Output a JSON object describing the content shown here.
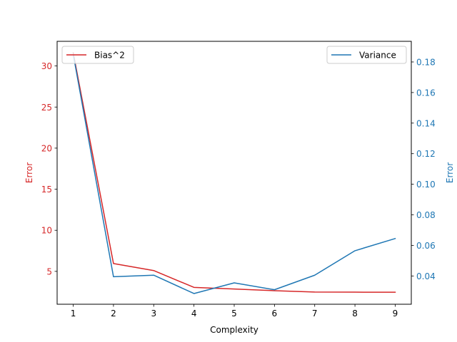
{
  "chart_data": {
    "type": "line",
    "title": "",
    "xlabel": "Complexity",
    "x": [
      1,
      2,
      3,
      4,
      5,
      6,
      7,
      8,
      9
    ],
    "xlim": [
      0.6,
      9.4
    ],
    "x_ticks": [
      1,
      2,
      3,
      4,
      5,
      6,
      7,
      8,
      9
    ],
    "grid": false,
    "series": [
      {
        "name": "Bias^2",
        "axis": "left",
        "color": "#d62728",
        "values": [
          31.6,
          5.95,
          5.1,
          3.05,
          2.85,
          2.65,
          2.48,
          2.47,
          2.46
        ]
      },
      {
        "name": "Variance",
        "axis": "right",
        "color": "#1f77b4",
        "values": [
          0.185,
          0.0395,
          0.0405,
          0.0285,
          0.0355,
          0.031,
          0.0405,
          0.0565,
          0.0645
        ]
      }
    ],
    "left_axis": {
      "label": "Error",
      "color": "#d62728",
      "lim": [
        1.0,
        33.0
      ],
      "ticks": [
        5,
        10,
        15,
        20,
        25,
        30
      ]
    },
    "right_axis": {
      "label": "Error",
      "color": "#1f77b4",
      "lim": [
        0.0215,
        0.1935
      ],
      "ticks": [
        0.04,
        0.06,
        0.08,
        0.1,
        0.12,
        0.14,
        0.16,
        0.18
      ],
      "tick_labels": [
        "0.04",
        "0.06",
        "0.08",
        "0.10",
        "0.12",
        "0.14",
        "0.16",
        "0.18"
      ]
    },
    "legends": [
      {
        "series": "Bias^2",
        "placement": "upper-left"
      },
      {
        "series": "Variance",
        "placement": "upper-right"
      }
    ]
  }
}
